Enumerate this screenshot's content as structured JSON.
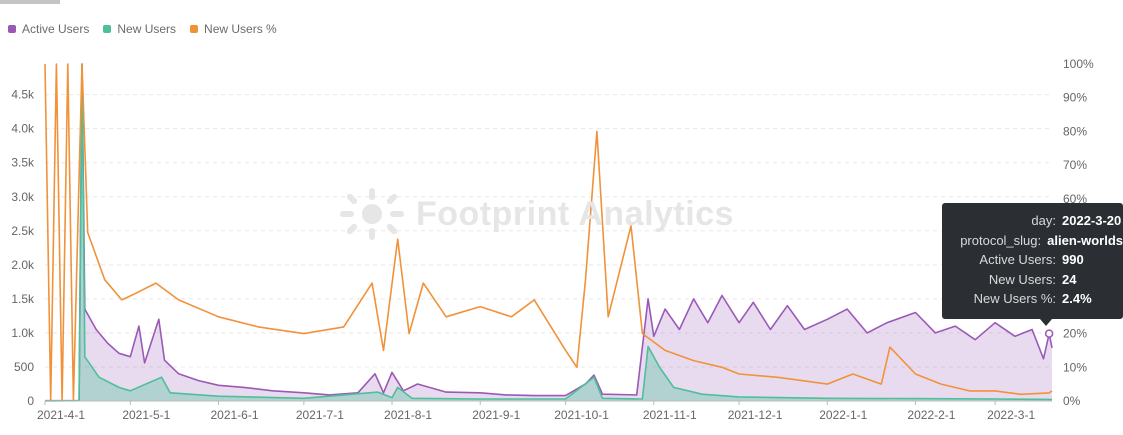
{
  "legend": [
    {
      "name": "Active Users",
      "color": "#9b59b6"
    },
    {
      "name": "New Users",
      "color": "#4dbf9a"
    },
    {
      "name": "New Users %",
      "color": "#f0923a"
    }
  ],
  "watermark": {
    "text": "Footprint Analytics"
  },
  "tooltip": {
    "rows": [
      {
        "key": "day:",
        "value": "2022-3-20"
      },
      {
        "key": "protocol_slug:",
        "value": "alien-worlds"
      },
      {
        "key": "Active Users:",
        "value": "990"
      },
      {
        "key": "New Users:",
        "value": "24"
      },
      {
        "key": "New Users %:",
        "value": "2.4%"
      }
    ]
  },
  "chart_data": {
    "type": "area",
    "x_ticks": [
      "2021-4-1",
      "2021-5-1",
      "2021-6-1",
      "2021-7-1",
      "2021-8-1",
      "2021-9-1",
      "2021-10-1",
      "2021-11-1",
      "2021-12-1",
      "2022-1-1",
      "2022-2-1",
      "2022-3-1"
    ],
    "y_left": {
      "ticks": [
        "0",
        "500",
        "1.0k",
        "1.5k",
        "2.0k",
        "2.5k",
        "3.0k",
        "3.5k",
        "4.0k",
        "4.5k"
      ],
      "range": [
        0,
        4950
      ]
    },
    "y_right": {
      "ticks": [
        "0%",
        "10%",
        "20%",
        "30%",
        "40%",
        "50%",
        "60%",
        "70%",
        "80%",
        "90%",
        "100%"
      ],
      "range": [
        0,
        100
      ]
    },
    "grid": "horizontal dashed",
    "legend_position": "top-left",
    "series": [
      {
        "name": "Active Users",
        "axis": "left",
        "color": "#9b59b6",
        "points": [
          [
            "2021-4-1",
            5
          ],
          [
            "2021-4-13",
            8
          ],
          [
            "2021-4-14",
            4950
          ],
          [
            "2021-4-15",
            1350
          ],
          [
            "2021-4-19",
            1050
          ],
          [
            "2021-4-23",
            850
          ],
          [
            "2021-4-27",
            700
          ],
          [
            "2021-5-1",
            650
          ],
          [
            "2021-5-4",
            1100
          ],
          [
            "2021-5-6",
            560
          ],
          [
            "2021-5-11",
            1200
          ],
          [
            "2021-5-13",
            600
          ],
          [
            "2021-5-18",
            400
          ],
          [
            "2021-5-25",
            300
          ],
          [
            "2021-6-1",
            230
          ],
          [
            "2021-6-10",
            200
          ],
          [
            "2021-6-20",
            150
          ],
          [
            "2021-7-1",
            120
          ],
          [
            "2021-7-10",
            90
          ],
          [
            "2021-7-20",
            120
          ],
          [
            "2021-7-26",
            400
          ],
          [
            "2021-7-29",
            120
          ],
          [
            "2021-8-1",
            420
          ],
          [
            "2021-8-5",
            150
          ],
          [
            "2021-8-10",
            250
          ],
          [
            "2021-8-20",
            130
          ],
          [
            "2021-9-1",
            120
          ],
          [
            "2021-9-10",
            90
          ],
          [
            "2021-9-20",
            80
          ],
          [
            "2021-10-1",
            80
          ],
          [
            "2021-10-8",
            250
          ],
          [
            "2021-10-11",
            380
          ],
          [
            "2021-10-14",
            100
          ],
          [
            "2021-10-26",
            90
          ],
          [
            "2021-10-30",
            1500
          ],
          [
            "2021-11-1",
            950
          ],
          [
            "2021-11-5",
            1350
          ],
          [
            "2021-11-10",
            1050
          ],
          [
            "2021-11-15",
            1500
          ],
          [
            "2021-11-20",
            1150
          ],
          [
            "2021-11-25",
            1550
          ],
          [
            "2021-12-1",
            1150
          ],
          [
            "2021-12-6",
            1450
          ],
          [
            "2021-12-12",
            1050
          ],
          [
            "2021-12-18",
            1400
          ],
          [
            "2021-12-24",
            1050
          ],
          [
            "2022-1-1",
            1200
          ],
          [
            "2022-1-8",
            1350
          ],
          [
            "2022-1-15",
            1000
          ],
          [
            "2022-1-22",
            1150
          ],
          [
            "2022-2-1",
            1300
          ],
          [
            "2022-2-8",
            1000
          ],
          [
            "2022-2-15",
            1100
          ],
          [
            "2022-2-22",
            900
          ],
          [
            "2022-3-1",
            1150
          ],
          [
            "2022-3-8",
            950
          ],
          [
            "2022-3-14",
            1050
          ],
          [
            "2022-3-18",
            620
          ],
          [
            "2022-3-20",
            990
          ],
          [
            "2022-3-21",
            780
          ]
        ]
      },
      {
        "name": "New Users",
        "axis": "left",
        "color": "#4dbf9a",
        "points": [
          [
            "2021-4-1",
            2
          ],
          [
            "2021-4-13",
            5
          ],
          [
            "2021-4-14",
            4950
          ],
          [
            "2021-4-15",
            650
          ],
          [
            "2021-4-20",
            350
          ],
          [
            "2021-4-27",
            200
          ],
          [
            "2021-5-1",
            150
          ],
          [
            "2021-5-12",
            350
          ],
          [
            "2021-5-15",
            120
          ],
          [
            "2021-6-1",
            70
          ],
          [
            "2021-7-1",
            40
          ],
          [
            "2021-7-27",
            130
          ],
          [
            "2021-8-1",
            50
          ],
          [
            "2021-8-3",
            200
          ],
          [
            "2021-8-8",
            40
          ],
          [
            "2021-9-1",
            30
          ],
          [
            "2021-10-1",
            30
          ],
          [
            "2021-10-11",
            350
          ],
          [
            "2021-10-14",
            40
          ],
          [
            "2021-10-28",
            30
          ],
          [
            "2021-10-30",
            800
          ],
          [
            "2021-11-3",
            500
          ],
          [
            "2021-11-8",
            200
          ],
          [
            "2021-11-18",
            100
          ],
          [
            "2021-12-1",
            60
          ],
          [
            "2022-1-1",
            40
          ],
          [
            "2022-2-1",
            35
          ],
          [
            "2022-3-1",
            30
          ],
          [
            "2022-3-20",
            24
          ],
          [
            "2022-3-21",
            20
          ]
        ]
      },
      {
        "name": "New Users %",
        "axis": "right",
        "color": "#f0923a",
        "points": [
          [
            "2021-4-1",
            100
          ],
          [
            "2021-4-3",
            0
          ],
          [
            "2021-4-5",
            100
          ],
          [
            "2021-4-7",
            0
          ],
          [
            "2021-4-9",
            100
          ],
          [
            "2021-4-11",
            0
          ],
          [
            "2021-4-14",
            100
          ],
          [
            "2021-4-16",
            50
          ],
          [
            "2021-4-22",
            36
          ],
          [
            "2021-4-28",
            30
          ],
          [
            "2021-5-3",
            32
          ],
          [
            "2021-5-10",
            35
          ],
          [
            "2021-5-18",
            30
          ],
          [
            "2021-6-1",
            25
          ],
          [
            "2021-6-15",
            22
          ],
          [
            "2021-7-1",
            20
          ],
          [
            "2021-7-15",
            22
          ],
          [
            "2021-7-25",
            35
          ],
          [
            "2021-7-29",
            15
          ],
          [
            "2021-8-3",
            48
          ],
          [
            "2021-8-7",
            20
          ],
          [
            "2021-8-12",
            35
          ],
          [
            "2021-8-20",
            25
          ],
          [
            "2021-9-1",
            28
          ],
          [
            "2021-9-12",
            25
          ],
          [
            "2021-9-20",
            30
          ],
          [
            "2021-10-1",
            15
          ],
          [
            "2021-10-5",
            10
          ],
          [
            "2021-10-8",
            36
          ],
          [
            "2021-10-12",
            80
          ],
          [
            "2021-10-16",
            25
          ],
          [
            "2021-10-24",
            52
          ],
          [
            "2021-10-28",
            20
          ],
          [
            "2021-11-5",
            15
          ],
          [
            "2021-11-15",
            12
          ],
          [
            "2021-11-25",
            10
          ],
          [
            "2021-12-1",
            8
          ],
          [
            "2021-12-15",
            7
          ],
          [
            "2022-1-1",
            5
          ],
          [
            "2022-1-10",
            8
          ],
          [
            "2022-1-20",
            5
          ],
          [
            "2022-1-23",
            16
          ],
          [
            "2022-2-1",
            8
          ],
          [
            "2022-2-10",
            5
          ],
          [
            "2022-2-20",
            3
          ],
          [
            "2022-3-1",
            3
          ],
          [
            "2022-3-10",
            2
          ],
          [
            "2022-3-20",
            2.4
          ],
          [
            "2022-3-21",
            3
          ]
        ]
      }
    ]
  }
}
